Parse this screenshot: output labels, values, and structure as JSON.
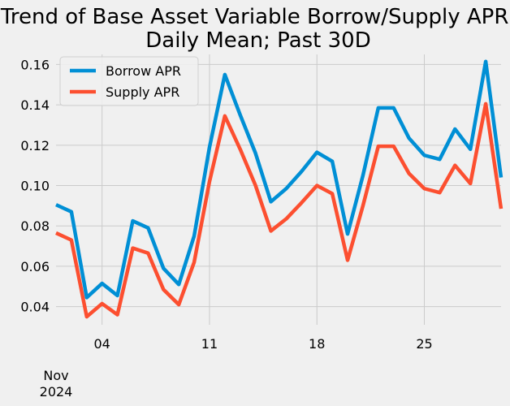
{
  "chart_data": {
    "type": "line",
    "title_lines": [
      "Trend of Base Asset Variable Borrow/Supply APR;",
      "Daily Mean; Past 30D"
    ],
    "xlabel": "",
    "ylabel": "",
    "x_days": [
      1,
      2,
      3,
      4,
      5,
      6,
      7,
      8,
      9,
      10,
      11,
      12,
      13,
      14,
      15,
      16,
      17,
      18,
      19,
      20,
      21,
      22,
      23,
      24,
      25,
      26,
      27,
      28,
      29,
      30
    ],
    "ylim": [
      0.031,
      0.165
    ],
    "y_ticks": [
      0.04,
      0.06,
      0.08,
      0.1,
      0.12,
      0.14,
      0.16
    ],
    "y_tick_labels": [
      "0.04",
      "0.06",
      "0.08",
      "0.10",
      "0.12",
      "0.14",
      "0.16"
    ],
    "x_ticks": [
      4,
      11,
      18,
      25
    ],
    "x_tick_labels": [
      "04",
      "11",
      "18",
      "25"
    ],
    "x_minor_label": {
      "day": 1,
      "line1": "Nov",
      "line2": "2024"
    },
    "series": [
      {
        "name": "Borrow APR",
        "color": "#008fd5",
        "values": [
          0.0905,
          0.087,
          0.0445,
          0.0515,
          0.0455,
          0.0825,
          0.079,
          0.059,
          0.051,
          0.075,
          0.119,
          0.155,
          0.135,
          0.116,
          0.092,
          0.0985,
          0.107,
          0.1165,
          0.112,
          0.076,
          0.105,
          0.1385,
          0.1385,
          0.1235,
          0.115,
          0.113,
          0.128,
          0.118,
          0.1615,
          0.104
        ]
      },
      {
        "name": "Supply APR",
        "color": "#fc4f30",
        "values": [
          0.0765,
          0.073,
          0.035,
          0.0415,
          0.036,
          0.069,
          0.0665,
          0.0485,
          0.041,
          0.062,
          0.102,
          0.1345,
          0.118,
          0.1,
          0.0775,
          0.0835,
          0.0915,
          0.1,
          0.096,
          0.063,
          0.09,
          0.1195,
          0.1195,
          0.106,
          0.0985,
          0.0965,
          0.11,
          0.101,
          0.1405,
          0.0885
        ]
      }
    ],
    "legend": {
      "position": "top-left"
    }
  }
}
